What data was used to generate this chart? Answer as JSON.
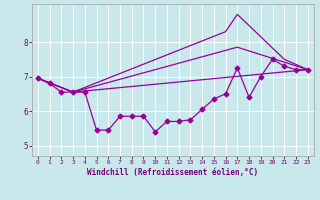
{
  "title": "",
  "xlabel": "Windchill (Refroidissement éolien,°C)",
  "ylabel": "",
  "bg_color": "#c8e8ec",
  "line_color": "#990099",
  "xlim": [
    -0.5,
    23.5
  ],
  "ylim": [
    4.7,
    9.1
  ],
  "yticks": [
    5,
    6,
    7,
    8
  ],
  "xticks": [
    0,
    1,
    2,
    3,
    4,
    5,
    6,
    7,
    8,
    9,
    10,
    11,
    12,
    13,
    14,
    15,
    16,
    17,
    18,
    19,
    20,
    21,
    22,
    23
  ],
  "main_line": {
    "x": [
      0,
      1,
      2,
      3,
      4,
      5,
      6,
      7,
      8,
      9,
      10,
      11,
      12,
      13,
      14,
      15,
      16,
      17,
      18,
      19,
      20,
      21,
      22,
      23
    ],
    "y": [
      6.95,
      6.8,
      6.55,
      6.55,
      6.55,
      5.45,
      5.45,
      5.85,
      5.85,
      5.85,
      5.4,
      5.7,
      5.7,
      5.75,
      6.05,
      6.35,
      6.5,
      7.25,
      6.4,
      7.0,
      7.5,
      7.3,
      7.2,
      7.2
    ]
  },
  "extra_lines": [
    {
      "x": [
        0,
        3,
        23
      ],
      "y": [
        6.95,
        6.55,
        7.2
      ]
    },
    {
      "x": [
        0,
        3,
        17,
        23
      ],
      "y": [
        6.95,
        6.55,
        7.85,
        7.2
      ]
    },
    {
      "x": [
        0,
        3,
        16,
        17,
        21,
        23
      ],
      "y": [
        6.95,
        6.55,
        8.3,
        8.8,
        7.5,
        7.2
      ]
    }
  ]
}
